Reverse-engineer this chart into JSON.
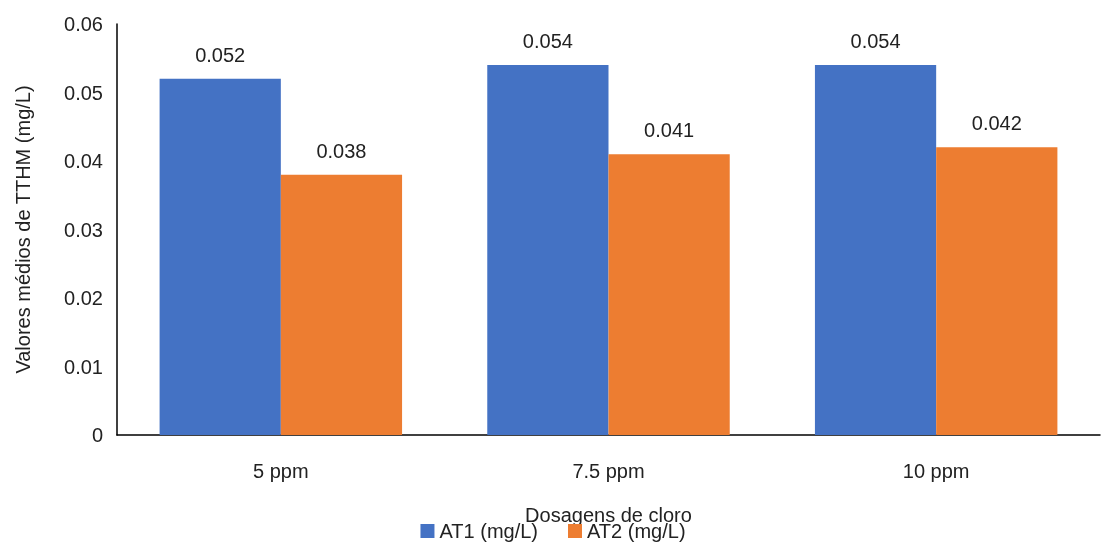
{
  "chart_data": {
    "type": "bar",
    "xlabel": "Dosagens de cloro",
    "ylabel": "Valores médios de TTHM (mg/L)",
    "categories": [
      "5 ppm",
      "7.5 ppm",
      "10 ppm"
    ],
    "series": [
      {
        "name": "AT1 (mg/L)",
        "color": "#4472c4",
        "values": [
          0.052,
          0.054,
          0.054
        ]
      },
      {
        "name": "AT2 (mg/L)",
        "color": "#ed7d31",
        "values": [
          0.038,
          0.041,
          0.042
        ]
      }
    ],
    "ylim": [
      0,
      0.06
    ],
    "yticks": [
      0,
      0.01,
      0.02,
      0.03,
      0.04,
      0.05,
      0.06
    ],
    "grid": false,
    "legend": "bottom",
    "data_labels": true
  }
}
